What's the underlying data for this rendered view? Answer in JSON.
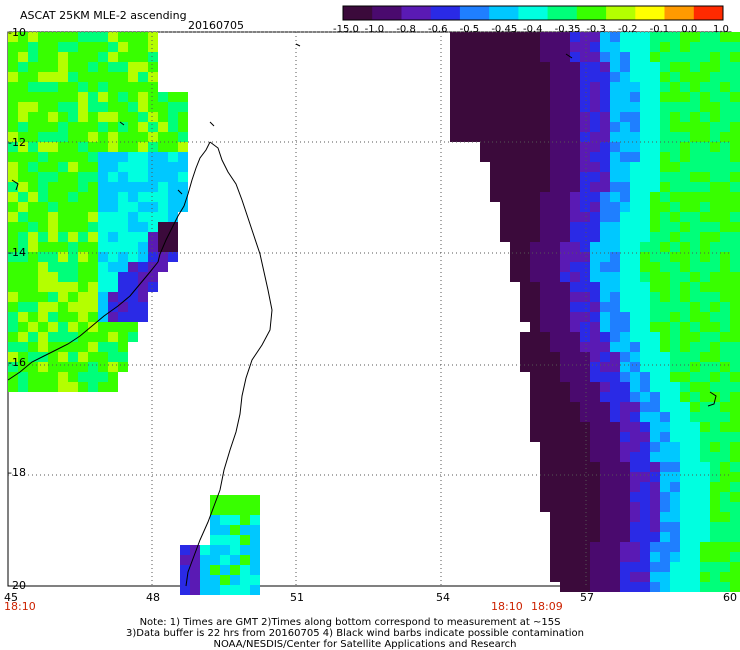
{
  "header": {
    "title": "ASCAT 25KM MLE-2 ascending",
    "date": "20160705"
  },
  "colorbar": {
    "labels": [
      "-15.0",
      "-1.0",
      "-0.8",
      "-0.6",
      "-0.5",
      "-0.45",
      "-0.4",
      "-0.35",
      "-0.3",
      "-0.2",
      "-0.1",
      "0.0",
      "1.0"
    ],
    "colors": [
      "#3b0a3b",
      "#4a0a6e",
      "#5a1ab4",
      "#2a2ae6",
      "#1f7fff",
      "#00c8ff",
      "#00ffe0",
      "#00ff7a",
      "#38ff00",
      "#b4ff00",
      "#ffff00",
      "#ff9a00",
      "#ff2a00"
    ]
  },
  "axes": {
    "lat_labels": [
      "-10",
      "-12",
      "-14",
      "-16",
      "-18",
      "-20"
    ],
    "lon_labels": [
      "45",
      "48",
      "51",
      "54",
      "57",
      "60"
    ]
  },
  "pass_times": [
    "18:10",
    "18:10",
    "18:09"
  ],
  "footer": {
    "line1": "Note: 1) Times are GMT 2)Times along bottom correspond to measurement at ~15S",
    "line2": "3)Data buffer is 22 hrs from 20160705 4) Black wind barbs indicate possible contamination",
    "line3": "NOAA/NESDIS/Center for Satellite Applications and Research"
  }
}
